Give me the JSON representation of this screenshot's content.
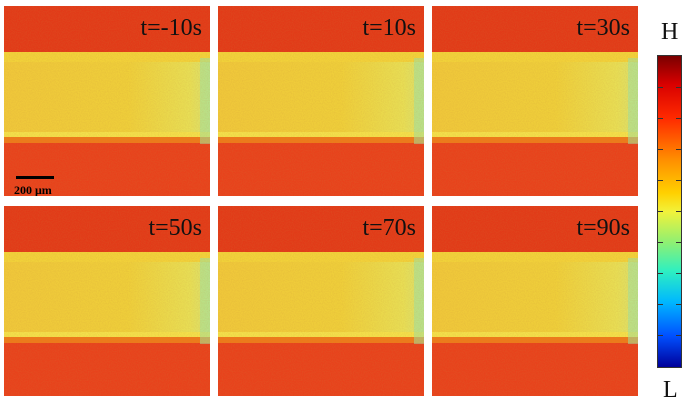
{
  "panels": [
    {
      "label": "t=-10s"
    },
    {
      "label": "t=10s"
    },
    {
      "label": "t=30s"
    },
    {
      "label": "t=50s"
    },
    {
      "label": "t=70s"
    },
    {
      "label": "t=90s"
    }
  ],
  "scale_bar": {
    "label": "200 μm"
  },
  "colorbar": {
    "high_label": "H",
    "low_label": "L"
  },
  "colors": {
    "background_red": "#e6401a",
    "channel_yellow": "#efcf3a",
    "edge_cyan": "#7fd6b8"
  }
}
